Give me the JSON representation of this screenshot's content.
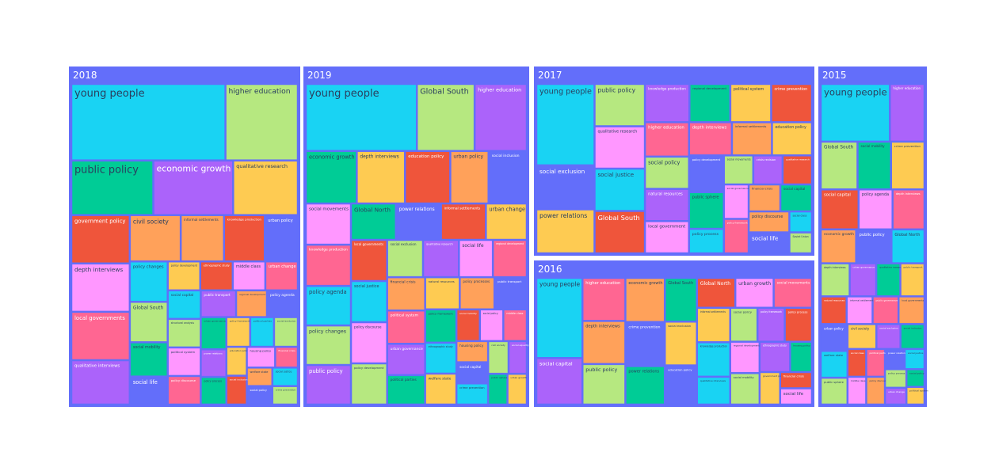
{
  "chart_data": {
    "type": "treemap",
    "colors": {
      "panel": "#636efa",
      "palette": [
        "#19d3f3",
        "#b6e880",
        "#ab63fa",
        "#00cc96",
        "#fecb52",
        "#ef553b",
        "#ff97ff",
        "#ff6692",
        "#ffa15a",
        "#636efa"
      ]
    },
    "panels": [
      {
        "title": "2018",
        "tiles": [
          {
            "label": "young people",
            "value": 100
          },
          {
            "label": "higher education",
            "value": 47
          },
          {
            "label": "economic growth",
            "value": 37
          },
          {
            "label": "public policy",
            "value": 38
          },
          {
            "label": "qualitative research",
            "value": 30
          },
          {
            "label": "government policy",
            "value": 24
          },
          {
            "label": "depth interviews",
            "value": 24
          },
          {
            "label": "local governments",
            "value": 24
          },
          {
            "label": "informal settlements",
            "value": 17
          },
          {
            "label": "urban policy",
            "value": 13
          },
          {
            "label": "policy changes",
            "value": 13
          },
          {
            "label": "Global South",
            "value": 13
          },
          {
            "label": "qualitative interviews",
            "value": 22
          },
          {
            "label": "social mobility",
            "value": 11
          },
          {
            "label": "policy development",
            "value": 8
          },
          {
            "label": "ethnographic study",
            "value": 8
          },
          {
            "label": "middle class",
            "value": 8
          },
          {
            "label": "urban change",
            "value": 8
          },
          {
            "label": "civil society",
            "value": 20
          },
          {
            "label": "social life",
            "value": 9
          },
          {
            "label": "social capital",
            "value": 8
          },
          {
            "label": "structural analysis",
            "value": 8
          },
          {
            "label": "power relations",
            "value": 6
          },
          {
            "label": "policy process",
            "value": 6
          },
          {
            "label": "policy framework",
            "value": 6
          },
          {
            "label": "knowledge production",
            "value": 16
          },
          {
            "label": "political system",
            "value": 8
          },
          {
            "label": "policy discourse",
            "value": 8
          },
          {
            "label": "regional development",
            "value": 7
          },
          {
            "label": "policy agenda",
            "value": 7
          },
          {
            "label": "political parties",
            "value": 6
          },
          {
            "label": "social exclusion",
            "value": 6
          },
          {
            "label": "public transport",
            "value": 8
          },
          {
            "label": "urban governance",
            "value": 7
          },
          {
            "label": "education policy",
            "value": 5
          },
          {
            "label": "social inclusion",
            "value": 5
          },
          {
            "label": "housing policy",
            "value": 5
          },
          {
            "label": "financial crisis",
            "value": 4
          },
          {
            "label": "welfare state",
            "value": 4
          },
          {
            "label": "social policy",
            "value": 4
          },
          {
            "label": "social justice",
            "value": 4
          },
          {
            "label": "crime prevention",
            "value": 4
          }
        ]
      },
      {
        "title": "2019",
        "tiles": [
          {
            "label": "young people",
            "value": 100
          },
          {
            "label": "Global South",
            "value": 52
          },
          {
            "label": "higher education",
            "value": 47
          },
          {
            "label": "economic growth",
            "value": 36
          },
          {
            "label": "depth interviews",
            "value": 34
          },
          {
            "label": "education policy",
            "value": 32
          },
          {
            "label": "social movements",
            "value": 25
          },
          {
            "label": "knowledge production",
            "value": 25
          },
          {
            "label": "urban policy",
            "value": 27
          },
          {
            "label": "social inclusion",
            "value": 27
          },
          {
            "label": "policy agenda",
            "value": 24
          },
          {
            "label": "policy changes",
            "value": 24
          },
          {
            "label": "public policy",
            "value": 24
          },
          {
            "label": "Global North",
            "value": 22
          },
          {
            "label": "urban change",
            "value": 20
          },
          {
            "label": "local governments",
            "value": 20
          },
          {
            "label": "social life",
            "value": 17
          },
          {
            "label": "regional development",
            "value": 17
          },
          {
            "label": "financial crisis",
            "value": 17
          },
          {
            "label": "power relations",
            "value": 22
          },
          {
            "label": "social justice",
            "value": 20
          },
          {
            "label": "social exclusion",
            "value": 18
          },
          {
            "label": "urban governance",
            "value": 16
          },
          {
            "label": "political parties",
            "value": 15
          },
          {
            "label": "natural resources",
            "value": 15
          },
          {
            "label": "informal settlements",
            "value": 22
          },
          {
            "label": "policy discourse",
            "value": 20
          },
          {
            "label": "political system",
            "value": 17
          },
          {
            "label": "policy processes",
            "value": 15
          },
          {
            "label": "public transport",
            "value": 14
          },
          {
            "label": "ethnographic study",
            "value": 13
          },
          {
            "label": "policy development",
            "value": 20
          },
          {
            "label": "qualitative research",
            "value": 18
          },
          {
            "label": "policy framework",
            "value": 14
          },
          {
            "label": "welfare state",
            "value": 13
          },
          {
            "label": "social mobility",
            "value": 10
          },
          {
            "label": "social policy",
            "value": 10
          },
          {
            "label": "middle class",
            "value": 10
          },
          {
            "label": "housing policy",
            "value": 9
          },
          {
            "label": "social capital",
            "value": 9
          },
          {
            "label": "crime prevention",
            "value": 9
          },
          {
            "label": "civil society",
            "value": 9
          },
          {
            "label": "social equality",
            "value": 8
          },
          {
            "label": "public sphere",
            "value": 8
          },
          {
            "label": "urban growth",
            "value": 8
          }
        ]
      },
      {
        "title": "2017",
        "tiles": [
          {
            "label": "young people",
            "value": 100
          },
          {
            "label": "public policy",
            "value": 45
          },
          {
            "label": "knowledge production",
            "value": 36
          },
          {
            "label": "regional development",
            "value": 33
          },
          {
            "label": "political system",
            "value": 33
          },
          {
            "label": "crime prevention",
            "value": 33
          },
          {
            "label": "qualitative research",
            "value": 45
          },
          {
            "label": "higher education",
            "value": 32
          },
          {
            "label": "informal settlements",
            "value": 28
          },
          {
            "label": "policy development",
            "value": 27
          },
          {
            "label": "policy process",
            "value": 18
          },
          {
            "label": "social movements",
            "value": 18
          },
          {
            "label": "crisis revision",
            "value": 18
          },
          {
            "label": "public sphere",
            "value": 27
          },
          {
            "label": "education policy",
            "value": 28
          },
          {
            "label": "qualitative research",
            "value": 18
          },
          {
            "label": "social governance",
            "value": 18
          },
          {
            "label": "policy framework",
            "value": 18
          },
          {
            "label": "financial crisis",
            "value": 18
          },
          {
            "label": "social exclusion",
            "value": 54
          },
          {
            "label": "social justice",
            "value": 45
          },
          {
            "label": "social policy",
            "value": 30
          },
          {
            "label": "natural resources",
            "value": 30
          },
          {
            "label": "social capital",
            "value": 18
          },
          {
            "label": "power relations",
            "value": 54
          },
          {
            "label": "Global South",
            "value": 45
          },
          {
            "label": "local government",
            "value": 30
          },
          {
            "label": "depth interviews",
            "value": 30
          },
          {
            "label": "policy discourse",
            "value": 18
          },
          {
            "label": "social life",
            "value": 18
          },
          {
            "label": "social class",
            "value": 10
          },
          {
            "label": "Soviet Union",
            "value": 10
          }
        ]
      },
      {
        "title": "2016",
        "tiles": [
          {
            "label": "young people",
            "value": 100
          },
          {
            "label": "public policy",
            "value": 47
          },
          {
            "label": "social capital",
            "value": 58
          },
          {
            "label": "Global South",
            "value": 38
          },
          {
            "label": "social exclusion",
            "value": 38
          },
          {
            "label": "Global North",
            "value": 31
          },
          {
            "label": "urban growth",
            "value": 31
          },
          {
            "label": "social movements",
            "value": 31
          },
          {
            "label": "economic growth",
            "value": 47
          },
          {
            "label": "education policy",
            "value": 34
          },
          {
            "label": "qualitative interviews",
            "value": 25
          },
          {
            "label": "social policy",
            "value": 25
          },
          {
            "label": "policy framework",
            "value": 25
          },
          {
            "label": "power relations",
            "value": 41
          },
          {
            "label": "informal settlements",
            "value": 31
          },
          {
            "label": "policy process",
            "value": 25
          },
          {
            "label": "regional development",
            "value": 25
          },
          {
            "label": "higher education",
            "value": 50
          },
          {
            "label": "depth interviews",
            "value": 50
          },
          {
            "label": "crime prevention",
            "value": 47
          },
          {
            "label": "knowledge production",
            "value": 31
          },
          {
            "label": "social mobility",
            "value": 25
          },
          {
            "label": "ethnographic study",
            "value": 25
          },
          {
            "label": "housing policy",
            "value": 18
          },
          {
            "label": "government policy",
            "value": 18
          },
          {
            "label": "financial crisis",
            "value": 14
          },
          {
            "label": "social life",
            "value": 14
          }
        ]
      },
      {
        "title": "2015",
        "tiles": [
          {
            "label": "young people",
            "value": 100
          },
          {
            "label": "Global South",
            "value": 44
          },
          {
            "label": "higher education",
            "value": 50
          },
          {
            "label": "social mobility",
            "value": 40
          },
          {
            "label": "crime prevention",
            "value": 40
          },
          {
            "label": "social capital",
            "value": 38
          },
          {
            "label": "policy agenda",
            "value": 34
          },
          {
            "label": "depth interviews",
            "value": 32
          },
          {
            "label": "economic growth",
            "value": 30
          },
          {
            "label": "public policy",
            "value": 30
          },
          {
            "label": "Global North",
            "value": 28
          },
          {
            "label": "depth interviews",
            "value": 24
          },
          {
            "label": "urban governance",
            "value": 22
          },
          {
            "label": "qualitative research",
            "value": 20
          },
          {
            "label": "public transport",
            "value": 20
          },
          {
            "label": "natural resources",
            "value": 18
          },
          {
            "label": "informal settlements",
            "value": 18
          },
          {
            "label": "public governance",
            "value": 18
          },
          {
            "label": "local governments",
            "value": 18
          },
          {
            "label": "urban policy",
            "value": 18
          },
          {
            "label": "welfare state",
            "value": 18
          },
          {
            "label": "public sphere",
            "value": 18
          },
          {
            "label": "social exclusion",
            "value": 15
          },
          {
            "label": "social inclusion",
            "value": 15
          },
          {
            "label": "civil society",
            "value": 18
          },
          {
            "label": "social class",
            "value": 13
          },
          {
            "label": "middle class",
            "value": 13
          },
          {
            "label": "political parties",
            "value": 13
          },
          {
            "label": "policy discourse",
            "value": 13
          },
          {
            "label": "power relations",
            "value": 10
          },
          {
            "label": "social justice",
            "value": 10
          },
          {
            "label": "policy process",
            "value": 10
          },
          {
            "label": "urban change",
            "value": 9
          },
          {
            "label": "social policy",
            "value": 8
          },
          {
            "label": "political system",
            "value": 8
          }
        ]
      }
    ]
  }
}
